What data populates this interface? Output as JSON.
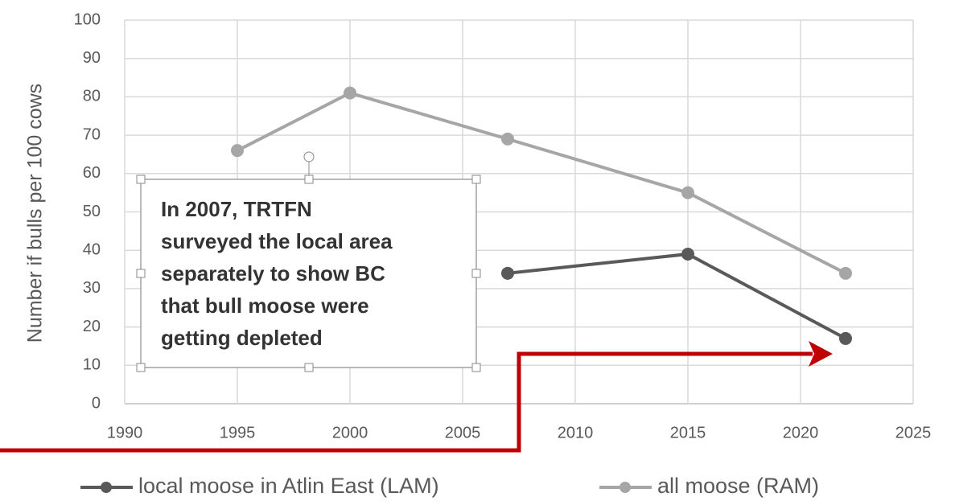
{
  "chart_data": {
    "type": "line",
    "ylabel": "Number if bulls per 100 cows",
    "xlim": [
      1990,
      2025
    ],
    "xticks": [
      1990,
      1995,
      2000,
      2005,
      2010,
      2015,
      2020,
      2025
    ],
    "ylim": [
      0,
      100
    ],
    "yticks": [
      0,
      10,
      20,
      30,
      40,
      50,
      60,
      70,
      80,
      90,
      100
    ],
    "grid": true,
    "legend": "bottom",
    "series": [
      {
        "name": "local moose in Atlin East (LAM)",
        "color": "#595959",
        "x": [
          2007,
          2015,
          2022
        ],
        "values": [
          34,
          39,
          17
        ]
      },
      {
        "name": "all moose (RAM)",
        "color": "#a6a6a6",
        "x": [
          1995,
          2000,
          2007,
          2015,
          2022
        ],
        "values": [
          66,
          81,
          69,
          55,
          34
        ]
      }
    ],
    "annotation": [
      "In 2007, TRTFN",
      "surveyed the local area",
      "separately to show BC",
      "that bull moose were",
      "getting depleted"
    ]
  }
}
